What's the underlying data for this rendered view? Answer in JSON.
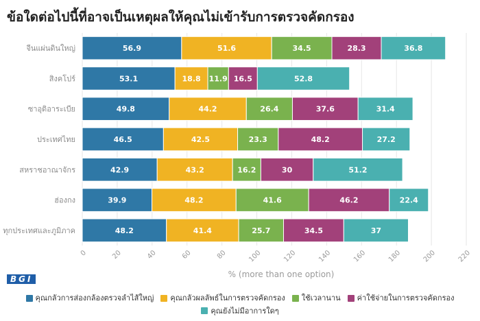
{
  "chart_data": {
    "type": "bar",
    "orientation": "horizontal",
    "stacked": true,
    "title": "ข้อใดต่อไปนี้ที่อาจเป็นเหตุผลให้คุณไม่เข้ารับการตรวจคัดกรอง",
    "xlabel": "% (more than one option)",
    "ylabel": "",
    "xlim": [
      0,
      220
    ],
    "x_ticks": [
      0,
      20,
      40,
      60,
      80,
      100,
      120,
      140,
      160,
      180,
      200,
      220
    ],
    "grid": true,
    "legend_position": "bottom",
    "categories": [
      "จีนแผ่นดินใหญ่",
      "สิงคโปร์",
      "ซาอุดิอาระเบีย",
      "ประเทศไทย",
      "สหราชอาณาจักร",
      "ฮ่องกง",
      "ทุกประเทศและภูมิภาค"
    ],
    "series": [
      {
        "name": "คุณกลัวการส่องกล้องตรวจลำไส้ใหญ่",
        "color": "#2f78a6",
        "values": [
          56.9,
          53.1,
          49.8,
          46.5,
          42.9,
          39.9,
          48.2
        ]
      },
      {
        "name": "คุณกลัวผลลัพธ์ในการตรวจคัดกรอง",
        "color": "#f0b323",
        "values": [
          51.6,
          18.8,
          44.2,
          42.5,
          43.2,
          48.2,
          41.4
        ]
      },
      {
        "name": "ใช้เวลานาน",
        "color": "#7ab24e",
        "values": [
          34.5,
          11.9,
          26.4,
          23.3,
          16.2,
          41.6,
          25.7
        ]
      },
      {
        "name": "ค่าใช้จ่ายในการตรวจคัดกรอง",
        "color": "#a2417a",
        "values": [
          28.3,
          16.5,
          37.6,
          48.2,
          30,
          46.2,
          34.5
        ]
      },
      {
        "name": "คุณยังไม่มีอาการใดๆ",
        "color": "#4ab0b0",
        "values": [
          36.8,
          52.8,
          31.4,
          27.2,
          51.2,
          22.4,
          37
        ]
      }
    ]
  },
  "logo_text": "BGI"
}
